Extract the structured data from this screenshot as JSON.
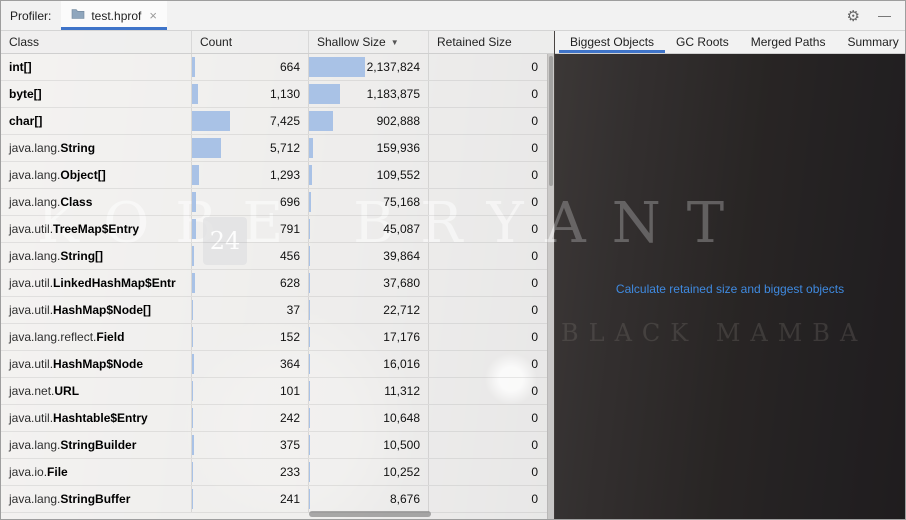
{
  "window": {
    "profiler_label": "Profiler:",
    "tab_label": "test.hprof",
    "close_glyph": "×",
    "gear_glyph": "⚙",
    "minimize_glyph": "—"
  },
  "heap_table": {
    "columns": {
      "class": "Class",
      "count": "Count",
      "shallow": "Shallow Size",
      "retained": "Retained Size"
    },
    "sort_column": "Shallow Size",
    "sort_glyph": "▼",
    "rows": [
      {
        "pkg": "",
        "name": "int[]",
        "count": 664,
        "count_text": "664",
        "shallow": 2137824,
        "shallow_text": "2,137,824",
        "retained_text": "0"
      },
      {
        "pkg": "",
        "name": "byte[]",
        "count": 1130,
        "count_text": "1,130",
        "shallow": 1183875,
        "shallow_text": "1,183,875",
        "retained_text": "0"
      },
      {
        "pkg": "",
        "name": "char[]",
        "count": 7425,
        "count_text": "7,425",
        "shallow": 902888,
        "shallow_text": "902,888",
        "retained_text": "0"
      },
      {
        "pkg": "java.lang.",
        "name": "String",
        "count": 5712,
        "count_text": "5,712",
        "shallow": 159936,
        "shallow_text": "159,936",
        "retained_text": "0"
      },
      {
        "pkg": "java.lang.",
        "name": "Object[]",
        "count": 1293,
        "count_text": "1,293",
        "shallow": 109552,
        "shallow_text": "109,552",
        "retained_text": "0"
      },
      {
        "pkg": "java.lang.",
        "name": "Class",
        "count": 696,
        "count_text": "696",
        "shallow": 75168,
        "shallow_text": "75,168",
        "retained_text": "0"
      },
      {
        "pkg": "java.util.",
        "name": "TreeMap$Entry",
        "count": 791,
        "count_text": "791",
        "shallow": 45087,
        "shallow_text": "45,087",
        "retained_text": "0"
      },
      {
        "pkg": "java.lang.",
        "name": "String[]",
        "count": 456,
        "count_text": "456",
        "shallow": 39864,
        "shallow_text": "39,864",
        "retained_text": "0"
      },
      {
        "pkg": "java.util.",
        "name": "LinkedHashMap$Entr",
        "count": 628,
        "count_text": "628",
        "shallow": 37680,
        "shallow_text": "37,680",
        "retained_text": "0"
      },
      {
        "pkg": "java.util.",
        "name": "HashMap$Node[]",
        "count": 37,
        "count_text": "37",
        "shallow": 22712,
        "shallow_text": "22,712",
        "retained_text": "0"
      },
      {
        "pkg": "java.lang.reflect.",
        "name": "Field",
        "count": 152,
        "count_text": "152",
        "shallow": 17176,
        "shallow_text": "17,176",
        "retained_text": "0"
      },
      {
        "pkg": "java.util.",
        "name": "HashMap$Node",
        "count": 364,
        "count_text": "364",
        "shallow": 16016,
        "shallow_text": "16,016",
        "retained_text": "0"
      },
      {
        "pkg": "java.net.",
        "name": "URL",
        "count": 101,
        "count_text": "101",
        "shallow": 11312,
        "shallow_text": "11,312",
        "retained_text": "0"
      },
      {
        "pkg": "java.util.",
        "name": "Hashtable$Entry",
        "count": 242,
        "count_text": "242",
        "shallow": 10648,
        "shallow_text": "10,648",
        "retained_text": "0"
      },
      {
        "pkg": "java.lang.",
        "name": "StringBuilder",
        "count": 375,
        "count_text": "375",
        "shallow": 10500,
        "shallow_text": "10,500",
        "retained_text": "0"
      },
      {
        "pkg": "java.io.",
        "name": "File",
        "count": 233,
        "count_text": "233",
        "shallow": 10252,
        "shallow_text": "10,252",
        "retained_text": "0"
      },
      {
        "pkg": "java.lang.",
        "name": "StringBuffer",
        "count": 241,
        "count_text": "241",
        "shallow": 8676,
        "shallow_text": "8,676",
        "retained_text": "0"
      }
    ]
  },
  "right_panel": {
    "tabs": [
      {
        "label": "Biggest Objects",
        "selected": true
      },
      {
        "label": "GC Roots",
        "selected": false
      },
      {
        "label": "Merged Paths",
        "selected": false
      },
      {
        "label": "Summary",
        "selected": false
      }
    ],
    "action_link": "Calculate retained size and biggest objects"
  },
  "wallpaper": {
    "title": "KOBE BRYANT",
    "jersey_number": "24",
    "sub_text": "BLACK MAMBA"
  },
  "colors": {
    "accent": "#3f74c9",
    "histogram_bar": "#a9c2e6",
    "link": "#3f8ae0"
  }
}
